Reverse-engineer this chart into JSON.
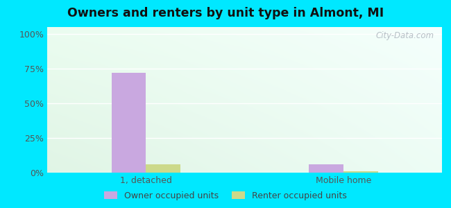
{
  "title": "Owners and renters by unit type in Almont, MI",
  "categories": [
    "1, detached",
    "Mobile home"
  ],
  "owner_values": [
    72,
    6
  ],
  "renter_values": [
    6,
    1
  ],
  "owner_color": "#c9a8e0",
  "renter_color": "#ccd98a",
  "ylabel_ticks": [
    0,
    25,
    50,
    75,
    100
  ],
  "ylabel_labels": [
    "0%",
    "25%",
    "50%",
    "75%",
    "100%"
  ],
  "ylim": [
    0,
    105
  ],
  "outer_bg": "#00e8ff",
  "watermark": "City-Data.com",
  "legend_owner": "Owner occupied units",
  "legend_renter": "Renter occupied units",
  "bar_width": 0.35,
  "group_positions": [
    1.0,
    3.0
  ],
  "xlim": [
    0.0,
    4.0
  ]
}
